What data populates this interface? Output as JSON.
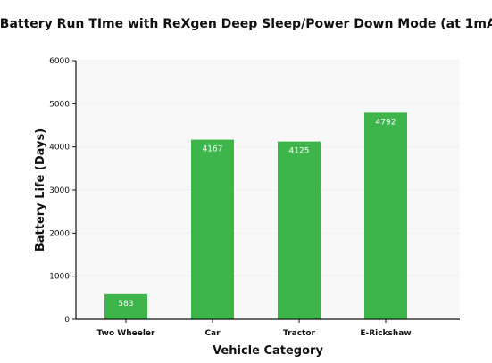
{
  "chart_data": {
    "type": "bar",
    "title": "Battery Run TIme with ReXgen Deep Sleep/Power Down Mode (at 1mA)",
    "xlabel": "Vehicle Category",
    "ylabel": "Battery Life (Days)",
    "categories": [
      "Two Wheeler",
      "Car",
      "Tractor",
      "E-Rickshaw"
    ],
    "values": [
      583,
      4167,
      4125,
      4792
    ],
    "data_labels": [
      "583",
      "4167",
      "4125",
      "4792"
    ],
    "ylim": [
      0,
      6000
    ],
    "yticks": [
      0,
      1000,
      2000,
      3000,
      4000,
      5000,
      6000
    ],
    "ytick_labels": [
      "0",
      "1000",
      "2000",
      "3000",
      "4000",
      "5000",
      "6000"
    ],
    "bar_color": "#3db54a",
    "background": "#f8f8f8",
    "grid": true,
    "legend": "none"
  }
}
